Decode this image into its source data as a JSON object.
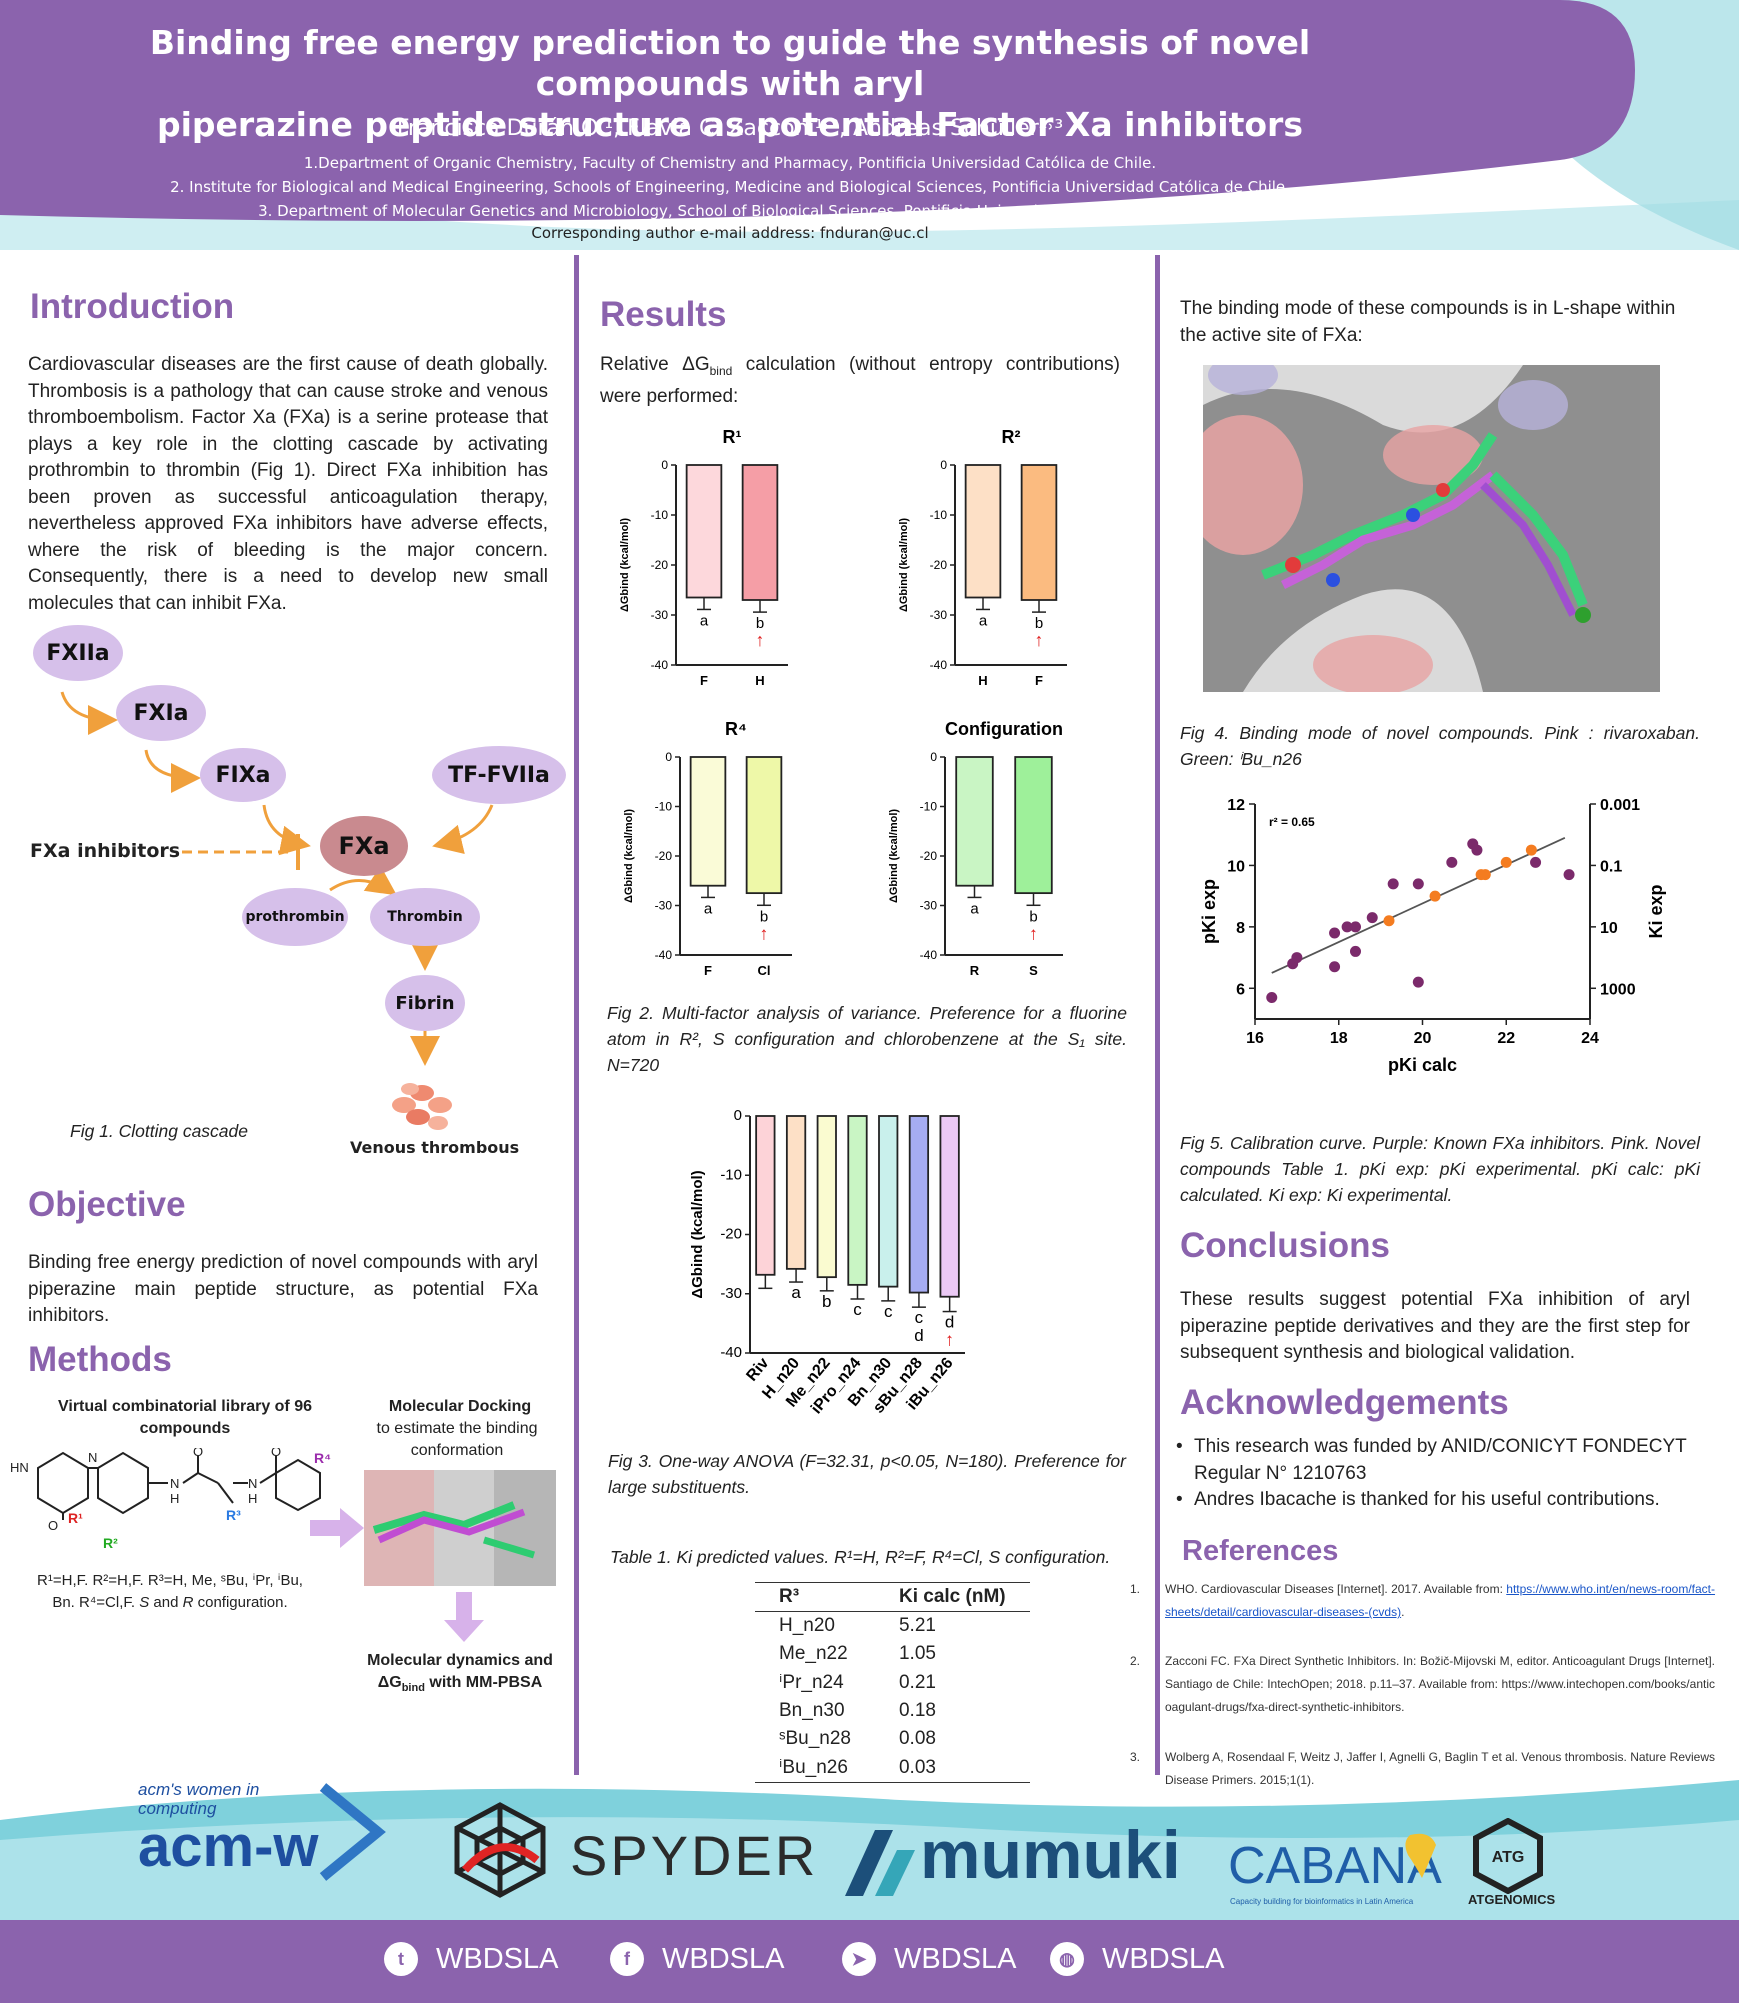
{
  "header": {
    "title_line1": "Binding free energy prediction to guide the synthesis of novel compounds with aryl",
    "title_line2": "piperazine peptide structure as potential Factor Xa inhibitors",
    "authors": "Francisca Durán O.¹, Flavia C. Zacconi¹˒², Andreas Schüller²˒³",
    "aff1": "1.Department of Organic Chemistry, Faculty of Chemistry and Pharmacy, Pontificia Universidad Católica de Chile.",
    "aff2": "2. Institute for Biological and Medical Engineering, Schools of Engineering, Medicine and Biological Sciences, Pontificia Universidad Católica de Chile.",
    "aff3": "3. Department of Molecular Genetics and Microbiology, School of Biological Sciences, Pontificia Universidad Católica de Chile.",
    "corresponding": "Corresponding author e-mail address: fnduran@uc.cl"
  },
  "colors": {
    "purple": "#8b63ad",
    "node": "#d6c0ea",
    "orange": "#f0a03c",
    "teal": "#7fd1dc"
  },
  "intro": {
    "heading": "Introduction",
    "text": "Cardiovascular diseases are the first cause of death globally. Thrombosis is a pathology that can cause stroke and venous thromboembolism. Factor Xa (FXa) is a serine protease that plays a key role in the clotting cascade by activating prothrombin to thrombin (Fig 1). Direct FXa inhibition has been proven as successful anticoagulation therapy, nevertheless approved FXa inhibitors have adverse effects, where the risk of bleeding is the major concern. Consequently, there is a need to develop new small molecules that can inhibit FXa."
  },
  "cascade": {
    "fxiia": "FXIIa",
    "fxia": "FXIa",
    "fixa": "FIXa",
    "tf": "TF-FVIIa",
    "fxa": "FXa",
    "inhibitors": "FXa inhibitors",
    "prothrombin": "prothrombin",
    "thrombin": "Thrombin",
    "fibrin": "Fibrin",
    "venous": "Venous thrombous",
    "caption": "Fig 1. Clotting cascade"
  },
  "objective": {
    "heading": "Objective",
    "text": "Binding free energy prediction of novel compounds with aryl piperazine main peptide structure, as potential FXa inhibitors."
  },
  "methods": {
    "heading": "Methods",
    "lib_title": "Virtual combinatorial library of 96 compounds",
    "dock_title": "Molecular Docking",
    "dock_sub": "to estimate the binding conformation",
    "md_title_1": "Molecular dynamics and",
    "md_title_2": "ΔG",
    "md_title_sub": "bind",
    "md_title_3": " with MM-PBSA",
    "subst_1": "R¹=H,F. R²=H,F. R³=H, Me, ˢBu, ⁱPr, ⁱBu,",
    "subst_2a": "Bn. R⁴=Cl,F. ",
    "subst_2b": "S",
    "subst_2c": " and ",
    "subst_2d": "R",
    "subst_2e": " configuration.",
    "lbl_hn": "HN",
    "lbl_o": "O",
    "lbl_n": "N",
    "lbl_h": "H",
    "lbl_r1": "R¹",
    "lbl_r2": "R²",
    "lbl_r3": "R³",
    "lbl_r4": "R⁴"
  },
  "results": {
    "heading": "Results",
    "intro_a": "Relative ΔG",
    "intro_sub": "bind",
    "intro_b": " calculation (without entropy contributions) were performed:",
    "fig2_caption": "Fig 2. Multi-factor analysis of variance. Preference for a fluorine atom in R², S configuration and chlorobenzene at the S₁ site. N=720",
    "fig3_caption": "Fig 3. One-way ANOVA (F=32.31, p<0.05, N=180). Preference for large substituents.",
    "table_caption": "Table 1. Ki predicted values. R¹=H, R²=F, R⁴=Cl, S configuration.",
    "table_h1": "R³",
    "table_h2": "Ki calc (nM)",
    "table_rows": [
      [
        "H_n20",
        "5.21"
      ],
      [
        "Me_n22",
        "1.05"
      ],
      [
        "ⁱPr_n24",
        "0.21"
      ],
      [
        "Bn_n30",
        "0.18"
      ],
      [
        "ˢBu_n28",
        "0.08"
      ],
      [
        "ⁱBu_n26",
        "0.03"
      ]
    ]
  },
  "chart_data": [
    {
      "type": "bar",
      "title": "R¹",
      "categories": [
        "F",
        "H"
      ],
      "values": [
        -26.5,
        -27.0
      ],
      "letters": [
        "a",
        "b"
      ],
      "arrow": [
        false,
        true
      ],
      "ylabel": "ΔGbind (kcal/mol)",
      "ylim": [
        -40,
        0
      ],
      "yticks": [
        "0",
        "-10",
        "-20",
        "-30",
        "-40"
      ],
      "colors": [
        "#fdd8dc",
        "#f59ea6"
      ]
    },
    {
      "type": "bar",
      "title": "R²",
      "categories": [
        "H",
        "F"
      ],
      "values": [
        -26.5,
        -27.0
      ],
      "letters": [
        "a",
        "b"
      ],
      "arrow": [
        false,
        true
      ],
      "ylabel": "ΔGbind (kcal/mol)",
      "ylim": [
        -40,
        0
      ],
      "yticks": [
        "0",
        "-10",
        "-20",
        "-30",
        "-40"
      ],
      "colors": [
        "#fde0c6",
        "#fbbb80"
      ]
    },
    {
      "type": "bar",
      "title": "R⁴",
      "categories": [
        "F",
        "Cl"
      ],
      "values": [
        -26.0,
        -27.5
      ],
      "letters": [
        "a",
        "b"
      ],
      "arrow": [
        false,
        true
      ],
      "ylabel": "ΔGbind (kcal/mol)",
      "ylim": [
        -40,
        0
      ],
      "yticks": [
        "0",
        "-10",
        "-20",
        "-30",
        "-40"
      ],
      "colors": [
        "#fafbd7",
        "#eef8a8"
      ]
    },
    {
      "type": "bar",
      "title": "Configuration",
      "categories": [
        "R",
        "S"
      ],
      "values": [
        -26.0,
        -27.5
      ],
      "letters": [
        "a",
        "b"
      ],
      "arrow": [
        false,
        true
      ],
      "ylabel": "ΔGbind (kcal/mol)",
      "ylim": [
        -40,
        0
      ],
      "yticks": [
        "0",
        "-10",
        "-20",
        "-30",
        "-40"
      ],
      "colors": [
        "#c9f5c4",
        "#9ef09a"
      ]
    },
    {
      "type": "bar",
      "categories": [
        "Riv",
        "H_n20",
        "Me_n22",
        "iPro_n24",
        "Bn_n30",
        "sBu_n28",
        "iBu_n26"
      ],
      "values": [
        -26.8,
        -25.8,
        -27.2,
        -28.5,
        -28.8,
        -29.8,
        -30.5
      ],
      "letters": [
        "",
        "a",
        "b",
        "c",
        "c",
        "c\nd",
        "d"
      ],
      "arrow": [
        false,
        false,
        false,
        false,
        false,
        false,
        true
      ],
      "ylabel": "ΔGbind (kcal/mol)",
      "ylim": [
        -40,
        0
      ],
      "yticks": [
        "0",
        "-10",
        "-20",
        "-30",
        "-40"
      ],
      "colors": [
        "#fdd3d8",
        "#fde0c6",
        "#fafbd0",
        "#c9f5c4",
        "#c9f0ec",
        "#a6acf2",
        "#ebc9f5"
      ]
    },
    {
      "type": "scatter",
      "xlabel": "pKi calc",
      "ylabel": "pKi exp",
      "y2label": "Ki exp",
      "annotation": "r² = 0.65",
      "xlim": [
        16,
        24
      ],
      "ylim": [
        5,
        12
      ],
      "xticks": [
        "16",
        "18",
        "20",
        "22",
        "24"
      ],
      "yticks": [
        "6",
        "8",
        "10",
        "12"
      ],
      "y2ticks": [
        "0.001",
        "0.1",
        "10",
        "1000"
      ],
      "series": [
        {
          "points": [
            [
              16.4,
              5.7
            ],
            [
              16.9,
              6.8
            ],
            [
              17.0,
              7.0
            ],
            [
              17.9,
              6.7
            ],
            [
              17.9,
              7.8
            ],
            [
              18.2,
              8.0
            ],
            [
              18.4,
              8.0
            ],
            [
              18.4,
              7.2
            ],
            [
              18.8,
              8.3
            ],
            [
              19.3,
              9.4
            ],
            [
              19.9,
              9.4
            ],
            [
              19.9,
              6.2
            ],
            [
              20.7,
              10.1
            ],
            [
              21.2,
              10.7
            ],
            [
              21.3,
              10.5
            ],
            [
              22.7,
              10.1
            ],
            [
              23.5,
              9.7
            ]
          ],
          "color": "#7b2a6b"
        },
        {
          "points": [
            [
              19.2,
              8.2
            ],
            [
              20.3,
              9.0
            ],
            [
              21.4,
              9.7
            ],
            [
              21.5,
              9.7
            ],
            [
              22.0,
              10.1
            ],
            [
              22.6,
              10.5
            ]
          ],
          "color": "#f47c20"
        }
      ],
      "fit": [
        [
          16.4,
          6.5
        ],
        [
          23.4,
          10.9
        ]
      ]
    }
  ],
  "right": {
    "binding_text": "The binding mode of these compounds is in L-shape within the active site of FXa:",
    "fig4_caption": "Fig 4. Binding mode of novel compounds. Pink : rivaroxaban. Green: ⁱBu_n26",
    "fig5_caption": "Fig 5. Calibration curve. Purple: Known FXa inhibitors. Pink. Novel compounds Table 1. pKi exp: pKi experimental. pKi calc: pKi calculated. Ki exp: Ki experimental."
  },
  "conclusions": {
    "heading": "Conclusions",
    "text": "These results suggest potential FXa inhibition of aryl piperazine peptide derivatives and they are the first step for subsequent synthesis and biological validation."
  },
  "acknowledgements": {
    "heading": "Acknowledgements",
    "item1": "This research was funded by ANID/CONICYT FONDECYT Regular N° 1210763",
    "item2": "Andres Ibacache is thanked for his useful contributions."
  },
  "references": {
    "heading": "References",
    "r1_num": "1.",
    "r1_text": "WHO. Cardiovascular Diseases [Internet]. 2017. Available from: ",
    "r1_link": "https://www.who.int/en/news-room/fact-sheets/detail/cardiovascular-diseases-(cvds)",
    "r1_end": ".",
    "r2_num": "2.",
    "r2_text": "Zacconi FC. FXa Direct Synthetic Inhibitors. In: Božič-Mijovski M, editor. Anticoagulant Drugs [Internet]. Santiago de Chile: IntechOpen; 2018. p.11–37. Available from: https://www.intechopen.com/books/anticoagulant-drugs/fxa-direct-synthetic-inhibitors.",
    "r3_num": "3.",
    "r3_text": "Wolberg A, Rosendaal F, Weitz J, Jaffer I, Agnelli G, Baglin T et al. Venous thrombosis. Nature Reviews Disease Primers. 2015;1(1)."
  },
  "logos": {
    "acmw_small_1": "acm's women in",
    "acmw_small_2": "computing",
    "acmw_big": "acm-w",
    "spyder": "SPYDER",
    "mumuki": "mumuki",
    "cabana": "CABANA",
    "cabana_sub": "Capacity building for bioinformatics in Latin America",
    "atg": "ATG",
    "atg_name": "ATGENOMICS"
  },
  "footer": {
    "twitter": "WBDSLA",
    "facebook": "WBDSLA",
    "telegram": "WBDSLA",
    "web": "WBDSLA"
  },
  "icons": [
    "twitter-icon",
    "facebook-icon",
    "telegram-icon",
    "globe-icon",
    "red-arrow-icon"
  ]
}
